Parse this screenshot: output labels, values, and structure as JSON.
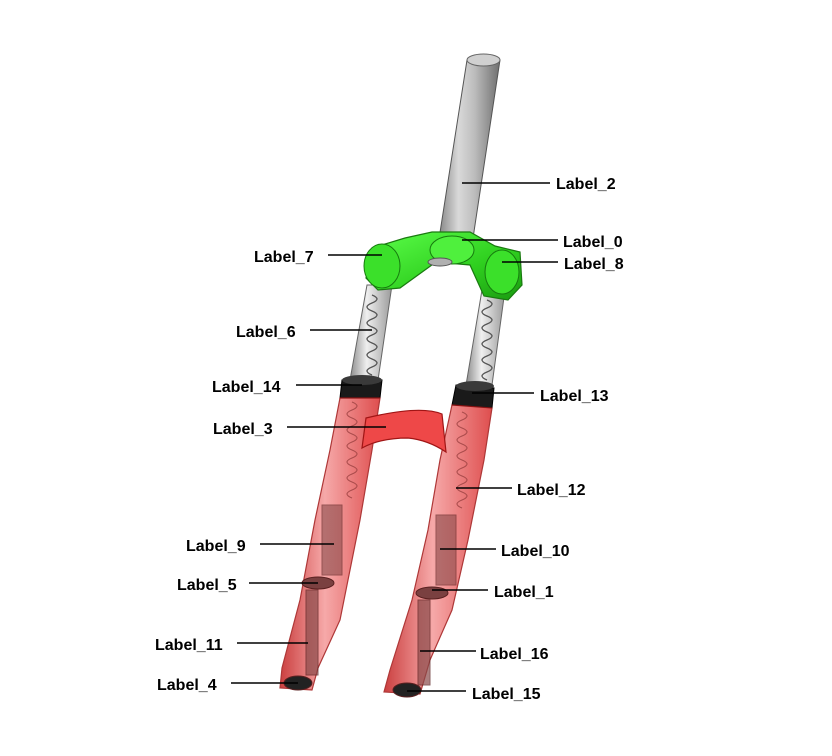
{
  "labels": {
    "l0": "Label_0",
    "l1": "Label_1",
    "l2": "Label_2",
    "l3": "Label_3",
    "l4": "Label_4",
    "l5": "Label_5",
    "l6": "Label_6",
    "l7": "Label_7",
    "l8": "Label_8",
    "l9": "Label_9",
    "l10": "Label_10",
    "l11": "Label_11",
    "l12": "Label_12",
    "l13": "Label_13",
    "l14": "Label_14",
    "l15": "Label_15",
    "l16": "Label_16"
  },
  "colors": {
    "steerer": "#b8b8b8",
    "crown": "#33dd22",
    "lowers": "#e63a3a",
    "stanchion": "#d8d8d8",
    "seal": "#111111"
  }
}
